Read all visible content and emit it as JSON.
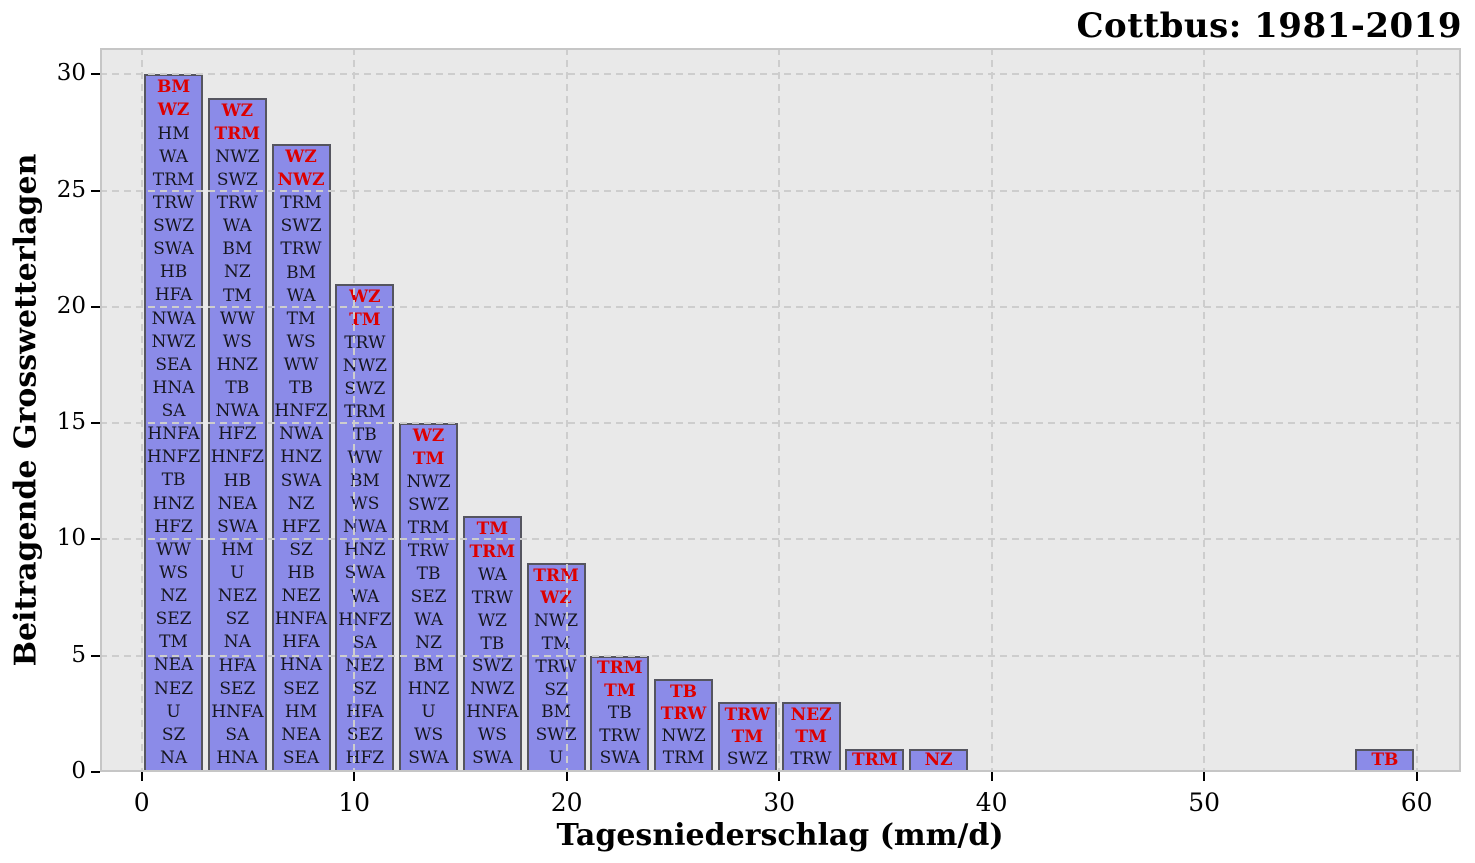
{
  "chart_data": {
    "type": "bar",
    "title": "Cottbus: 1981-2019",
    "xlabel": "Tagesniederschlag (mm/d)",
    "ylabel": "Beitragende Grosswetterlagen",
    "xticks": [
      0,
      10,
      20,
      30,
      40,
      50,
      60
    ],
    "yticks": [
      0,
      5,
      10,
      15,
      20,
      25,
      30
    ],
    "xlim": [
      -2,
      62.1
    ],
    "ylim": [
      0,
      31.1
    ],
    "bin_width": 3,
    "grid": "dashed, both axes, drawn above bars",
    "legend": "none",
    "colors": {
      "bar_fill": "#8b8be8",
      "bar_edge": "#55555f",
      "highlight_label": "#dd0000",
      "normal_label": "#16161f",
      "plot_background": "#e9e9e9",
      "gridline": "#cdcdcd"
    },
    "bars": [
      {
        "bin_start": 0,
        "bin_end": 3,
        "count": 30,
        "red_top": 2,
        "labels": [
          "BM",
          "WZ",
          "HM",
          "WA",
          "TRM",
          "TRW",
          "SWZ",
          "SWA",
          "HB",
          "HFA",
          "NWA",
          "NWZ",
          "SEA",
          "HNA",
          "SA",
          "HNFA",
          "HNFZ",
          "TB",
          "HNZ",
          "HFZ",
          "WW",
          "WS",
          "NZ",
          "SEZ",
          "TM",
          "NEA",
          "NEZ",
          "U",
          "SZ",
          "NA"
        ]
      },
      {
        "bin_start": 3,
        "bin_end": 6,
        "count": 29,
        "red_top": 2,
        "labels": [
          "WZ",
          "TRM",
          "NWZ",
          "SWZ",
          "TRW",
          "WA",
          "BM",
          "NZ",
          "TM",
          "WW",
          "WS",
          "HNZ",
          "TB",
          "NWA",
          "HFZ",
          "HNFZ",
          "HB",
          "NEA",
          "SWA",
          "HM",
          "U",
          "NEZ",
          "SZ",
          "NA",
          "HFA",
          "SEZ",
          "HNFA",
          "SA",
          "HNA"
        ]
      },
      {
        "bin_start": 6,
        "bin_end": 9,
        "count": 27,
        "red_top": 2,
        "labels": [
          "WZ",
          "NWZ",
          "TRM",
          "SWZ",
          "TRW",
          "BM",
          "WA",
          "TM",
          "WS",
          "WW",
          "TB",
          "HNFZ",
          "NWA",
          "HNZ",
          "SWA",
          "NZ",
          "HFZ",
          "SZ",
          "HB",
          "NEZ",
          "HNFA",
          "HFA",
          "HNA",
          "SEZ",
          "HM",
          "NEA",
          "SEA"
        ]
      },
      {
        "bin_start": 9,
        "bin_end": 12,
        "count": 21,
        "red_top": 2,
        "labels": [
          "WZ",
          "TM",
          "TRW",
          "NWZ",
          "SWZ",
          "TRM",
          "TB",
          "WW",
          "BM",
          "WS",
          "NWA",
          "HNZ",
          "SWA",
          "WA",
          "HNFZ",
          "SA",
          "NEZ",
          "SZ",
          "HFA",
          "SEZ",
          "HFZ"
        ]
      },
      {
        "bin_start": 12,
        "bin_end": 15,
        "count": 15,
        "red_top": 2,
        "labels": [
          "WZ",
          "TM",
          "NWZ",
          "SWZ",
          "TRM",
          "TRW",
          "TB",
          "SEZ",
          "WA",
          "NZ",
          "BM",
          "HNZ",
          "U",
          "WS",
          "SWA"
        ]
      },
      {
        "bin_start": 15,
        "bin_end": 18,
        "count": 11,
        "red_top": 2,
        "labels": [
          "TM",
          "TRM",
          "WA",
          "TRW",
          "WZ",
          "TB",
          "SWZ",
          "NWZ",
          "HNFA",
          "WS",
          "SWA"
        ]
      },
      {
        "bin_start": 18,
        "bin_end": 21,
        "count": 9,
        "red_top": 2,
        "labels": [
          "TRM",
          "WZ",
          "NWZ",
          "TM",
          "TRW",
          "SZ",
          "BM",
          "SWZ",
          "U"
        ]
      },
      {
        "bin_start": 21,
        "bin_end": 24,
        "count": 5,
        "red_top": 2,
        "labels": [
          "TRM",
          "TM",
          "TB",
          "TRW",
          "SWA"
        ]
      },
      {
        "bin_start": 24,
        "bin_end": 27,
        "count": 4,
        "red_top": 2,
        "labels": [
          "TB",
          "TRW",
          "NWZ",
          "TRM"
        ]
      },
      {
        "bin_start": 27,
        "bin_end": 30,
        "count": 3,
        "red_top": 2,
        "labels": [
          "TRW",
          "TM",
          "SWZ"
        ]
      },
      {
        "bin_start": 30,
        "bin_end": 33,
        "count": 3,
        "red_top": 2,
        "labels": [
          "NEZ",
          "TM",
          "TRW"
        ]
      },
      {
        "bin_start": 33,
        "bin_end": 36,
        "count": 1,
        "red_top": 1,
        "labels": [
          "TRM"
        ]
      },
      {
        "bin_start": 36,
        "bin_end": 39,
        "count": 1,
        "red_top": 1,
        "labels": [
          "NZ"
        ]
      },
      {
        "bin_start": 57,
        "bin_end": 60,
        "count": 1,
        "red_top": 1,
        "labels": [
          "TB"
        ]
      }
    ]
  }
}
